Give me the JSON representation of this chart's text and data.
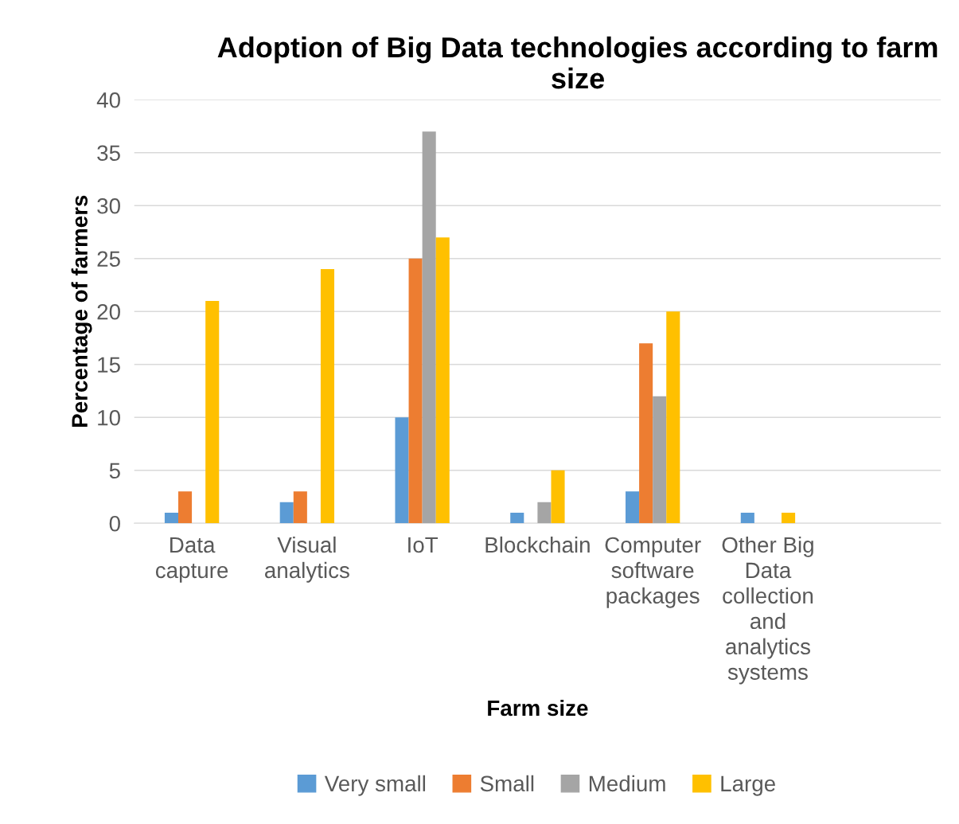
{
  "chart_data": {
    "type": "bar",
    "title": "Adoption of Big Data technologies according to farm size",
    "xlabel": "Farm size",
    "ylabel": "Percentage of farmers",
    "categories": [
      "Data\ncapture",
      "Visual\nanalytics",
      "IoT",
      "Blockchain",
      "Computer\nsoftware\npackages",
      "Other Big\nData\ncollection\nand\nanalytics\nsystems",
      null
    ],
    "series": [
      {
        "name": "Very small",
        "color": "#5b9bd5",
        "values": [
          1,
          2,
          10,
          1,
          3,
          1,
          null
        ]
      },
      {
        "name": "Small",
        "color": "#ed7d31",
        "values": [
          3,
          3,
          25,
          0,
          17,
          0,
          null
        ]
      },
      {
        "name": "Medium",
        "color": "#a5a5a5",
        "values": [
          0,
          0,
          37,
          2,
          12,
          0,
          null
        ]
      },
      {
        "name": "Large",
        "color": "#ffc000",
        "values": [
          21,
          24,
          27,
          5,
          20,
          1,
          null
        ]
      }
    ],
    "ylim": [
      0,
      40
    ],
    "yticks": [
      0,
      5,
      10,
      15,
      20,
      25,
      30,
      35,
      40
    ],
    "grid": "y",
    "legend": "bottom"
  }
}
